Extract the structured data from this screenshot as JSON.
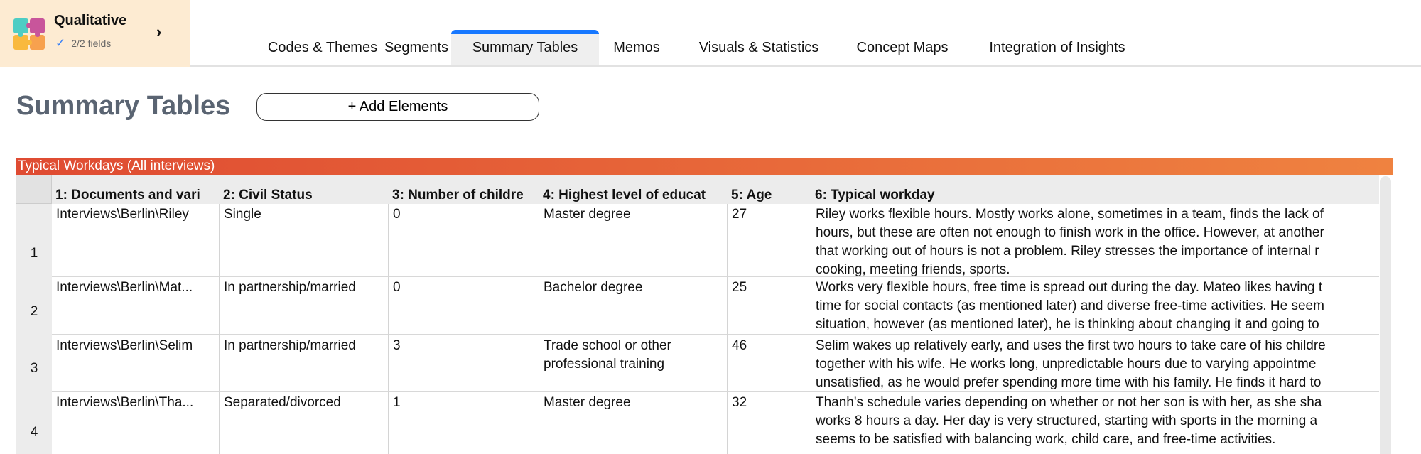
{
  "project": {
    "title": "Qualitative",
    "fields": "2/2 fields"
  },
  "tabs": [
    "Codes & Themes",
    "Segments",
    "Summary Tables",
    "Memos",
    "Visuals & Statistics",
    "Concept Maps",
    "Integration of Insights"
  ],
  "active_tab": "Summary Tables",
  "page_title": "Summary Tables",
  "add_button": "+ Add Elements",
  "table": {
    "title": "Typical Workdays (All interviews)",
    "headers": [
      "1: Documents and vari",
      "2: Civil Status",
      "3: Number of childre",
      "4: Highest level of educat",
      "5: Age",
      "6: Typical workday"
    ],
    "rows": [
      {
        "num": "1",
        "cells": [
          [
            "Interviews\\Berlin\\Riley"
          ],
          [
            "Single"
          ],
          [
            "0"
          ],
          [
            "Master degree"
          ],
          [
            "27"
          ],
          [
            "Riley works flexible hours. Mostly works alone, sometimes in a team, finds the lack of",
            "hours, but these are often not enough to finish work in the office. However, at another",
            "that working out of hours is not a problem. Riley stresses the importance of internal r",
            "cooking, meeting friends, sports."
          ]
        ]
      },
      {
        "num": "2",
        "cells": [
          [
            "Interviews\\Berlin\\Mat..."
          ],
          [
            "In partnership/married"
          ],
          [
            "0"
          ],
          [
            "Bachelor degree"
          ],
          [
            "25"
          ],
          [
            "Works very flexible hours, free time is spread out during the day. Mateo likes having t",
            "time for social contacts (as mentioned later) and diverse free-time activities. He seem",
            "situation, however (as mentioned later), he is thinking about changing it and going to"
          ]
        ]
      },
      {
        "num": "3",
        "cells": [
          [
            "Interviews\\Berlin\\Selim"
          ],
          [
            "In partnership/married"
          ],
          [
            "3"
          ],
          [
            "Trade school or other",
            "professional training"
          ],
          [
            "46"
          ],
          [
            "Selim wakes up relatively early, and uses the first two hours to take care of his childre",
            "together with his wife. He works long, unpredictable hours due to varying appointme",
            "unsatisfied, as he would prefer spending more time with his family. He finds it hard to"
          ]
        ]
      },
      {
        "num": "4",
        "cells": [
          [
            "Interviews\\Berlin\\Tha..."
          ],
          [
            "Separated/divorced"
          ],
          [
            "1"
          ],
          [
            "Master degree"
          ],
          [
            "32"
          ],
          [
            "Thanh's schedule varies depending on whether or not her son is with her, as she sha",
            "works 8 hours a day. Her day is very structured, starting with sports in the morning a",
            "seems to be satisfied with balancing work, child care, and free-time activities."
          ]
        ]
      }
    ]
  },
  "colors": {
    "accent": "#1677ff",
    "header_start": "#DF4B32",
    "header_end": "#EF8240",
    "project_bg": "#FDEBD2"
  }
}
